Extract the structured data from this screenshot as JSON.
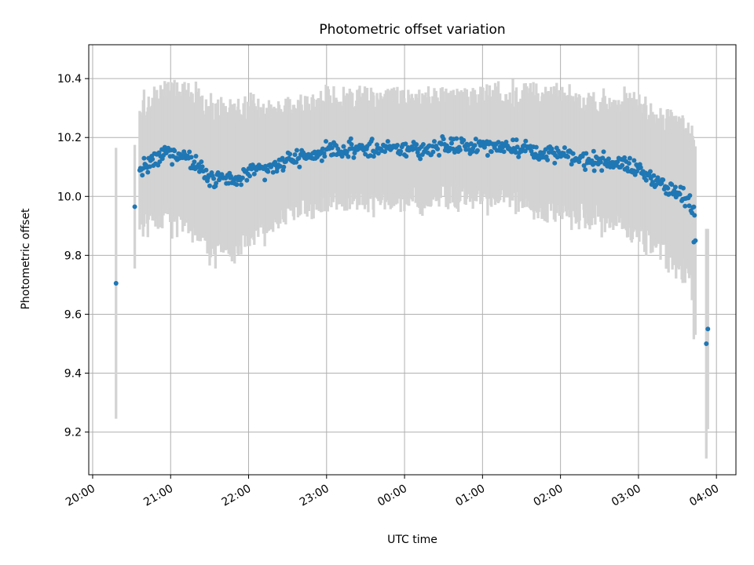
{
  "chart_data": {
    "type": "scatter",
    "title": "Photometric offset variation",
    "xlabel": "UTC time",
    "ylabel": "Photometric offset",
    "x_unit": "hours",
    "xlim": [
      19.95,
      28.25
    ],
    "ylim": [
      9.055,
      10.515
    ],
    "x_ticks": [
      {
        "value": 20,
        "label": "20:00"
      },
      {
        "value": 21,
        "label": "21:00"
      },
      {
        "value": 22,
        "label": "22:00"
      },
      {
        "value": 23,
        "label": "23:00"
      },
      {
        "value": 24,
        "label": "00:00"
      },
      {
        "value": 25,
        "label": "01:00"
      },
      {
        "value": 26,
        "label": "02:00"
      },
      {
        "value": 27,
        "label": "03:00"
      },
      {
        "value": 28,
        "label": "04:00"
      }
    ],
    "y_ticks": [
      {
        "value": 9.2,
        "label": "9.2"
      },
      {
        "value": 9.4,
        "label": "9.4"
      },
      {
        "value": 9.6,
        "label": "9.6"
      },
      {
        "value": 9.8,
        "label": "9.8"
      },
      {
        "value": 10.0,
        "label": "10.0"
      },
      {
        "value": 10.2,
        "label": "10.2"
      },
      {
        "value": 10.4,
        "label": "10.4"
      }
    ],
    "grid": true,
    "colors": {
      "points": "#1f77b4",
      "errorbars": "#d3d3d3",
      "grid": "#b0b0b0"
    },
    "anchors": [
      [
        20.6,
        10.09,
        0.2
      ],
      [
        20.8,
        10.12,
        0.21
      ],
      [
        20.95,
        10.15,
        0.22
      ],
      [
        21.1,
        10.14,
        0.23
      ],
      [
        21.25,
        10.13,
        0.22
      ],
      [
        21.35,
        10.1,
        0.24
      ],
      [
        21.5,
        10.07,
        0.24
      ],
      [
        21.65,
        10.06,
        0.25
      ],
      [
        21.8,
        10.05,
        0.24
      ],
      [
        22.0,
        10.08,
        0.22
      ],
      [
        22.2,
        10.09,
        0.2
      ],
      [
        22.4,
        10.11,
        0.19
      ],
      [
        22.6,
        10.13,
        0.18
      ],
      [
        22.8,
        10.14,
        0.18
      ],
      [
        23.0,
        10.15,
        0.19
      ],
      [
        23.2,
        10.16,
        0.18
      ],
      [
        23.4,
        10.16,
        0.18
      ],
      [
        23.6,
        10.16,
        0.18
      ],
      [
        23.8,
        10.16,
        0.18
      ],
      [
        24.0,
        10.16,
        0.18
      ],
      [
        24.2,
        10.16,
        0.18
      ],
      [
        24.4,
        10.17,
        0.18
      ],
      [
        24.6,
        10.17,
        0.18
      ],
      [
        24.8,
        10.17,
        0.18
      ],
      [
        25.0,
        10.17,
        0.18
      ],
      [
        25.2,
        10.17,
        0.18
      ],
      [
        25.4,
        10.17,
        0.18
      ],
      [
        25.6,
        10.16,
        0.19
      ],
      [
        25.8,
        10.15,
        0.19
      ],
      [
        26.0,
        10.14,
        0.2
      ],
      [
        26.2,
        10.13,
        0.2
      ],
      [
        26.4,
        10.12,
        0.2
      ],
      [
        26.6,
        10.12,
        0.2
      ],
      [
        26.8,
        10.11,
        0.21
      ],
      [
        27.0,
        10.09,
        0.22
      ],
      [
        27.2,
        10.06,
        0.23
      ],
      [
        27.35,
        10.03,
        0.24
      ],
      [
        27.5,
        10.01,
        0.25
      ],
      [
        27.6,
        9.99,
        0.26
      ],
      [
        27.7,
        9.96,
        0.27
      ]
    ],
    "isolated": [
      [
        20.3,
        9.705,
        0.46
      ],
      [
        20.54,
        9.965,
        0.21
      ],
      [
        27.71,
        9.845,
        0.33
      ],
      [
        27.73,
        9.85,
        0.32
      ],
      [
        27.87,
        9.5,
        0.39
      ],
      [
        27.89,
        9.55,
        0.34
      ]
    ]
  }
}
